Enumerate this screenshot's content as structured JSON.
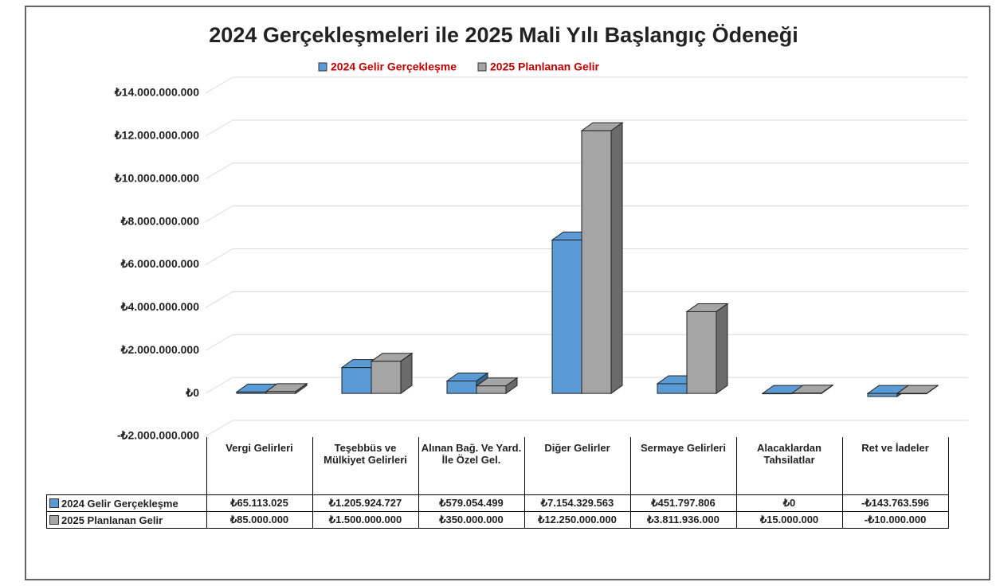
{
  "chart_data": {
    "type": "bar3d",
    "title": "2024 Gerçekleşmeleri ile 2025 Mali Yılı Başlangıç Ödeneği",
    "legend": "top",
    "categories": [
      "Vergi Gelirleri",
      "Teşebbüs ve Mülkiyet Gelirleri",
      "Alınan Bağ. Ve Yard. İle Özel Gel.",
      "Diğer Gelirler",
      "Sermaye Gelirleri",
      "Alacaklardan Tahsilatlar",
      "Ret ve İadeler"
    ],
    "series": [
      {
        "name": "2024 Gelir Gerçekleşme",
        "color": "#5b9bd5",
        "values": [
          65113025,
          1205924727,
          579054499,
          7154329563,
          451797806,
          0,
          -143763596
        ],
        "value_labels": [
          "₺65.113.025",
          "₺1.205.924.727",
          "₺579.054.499",
          "₺7.154.329.563",
          "₺451.797.806",
          "₺0",
          "-₺143.763.596"
        ]
      },
      {
        "name": "2025 Planlanan Gelir",
        "color": "#a5a5a5",
        "values": [
          85000000,
          1500000000,
          350000000,
          12250000000,
          3811936000,
          15000000,
          -10000000
        ],
        "value_labels": [
          "₺85.000.000",
          "₺1.500.000.000",
          "₺350.000.000",
          "₺12.250.000.000",
          "₺3.811.936.000",
          "₺15.000.000",
          "-₺10.000.000"
        ]
      }
    ],
    "ylim": [
      -2000000000,
      14000000000
    ],
    "yticks": [
      {
        "value": -2000000000,
        "label": "-₺2.000.000.000"
      },
      {
        "value": 0,
        "label": "₺0"
      },
      {
        "value": 2000000000,
        "label": "₺2.000.000.000"
      },
      {
        "value": 4000000000,
        "label": "₺4.000.000.000"
      },
      {
        "value": 6000000000,
        "label": "₺6.000.000.000"
      },
      {
        "value": 8000000000,
        "label": "₺8.000.000.000"
      },
      {
        "value": 10000000000,
        "label": "₺10.000.000.000"
      },
      {
        "value": 12000000000,
        "label": "₺12.000.000.000"
      },
      {
        "value": 14000000000,
        "label": "₺14.000.000.000"
      }
    ],
    "grid": true
  }
}
